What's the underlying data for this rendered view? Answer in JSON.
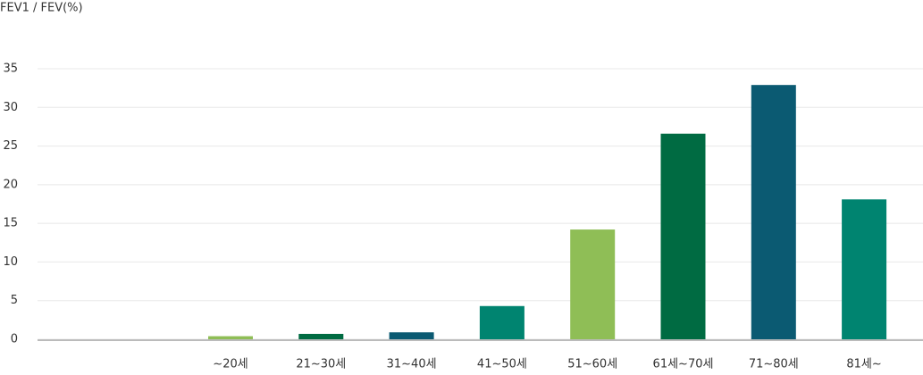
{
  "chart_data": {
    "type": "bar",
    "title": "FEV1 / FEV(%)",
    "categories": [
      "~20세",
      "21~30세",
      "31~40세",
      "41~50세",
      "51~60세",
      "61세~70세",
      "71~80세",
      "81세~"
    ],
    "values": [
      0.4,
      0.7,
      0.9,
      4.3,
      14.2,
      26.6,
      32.9,
      18.1
    ],
    "colors": [
      "#8fbe56",
      "#006b42",
      "#0b5a72",
      "#008470",
      "#8fbe56",
      "#006b42",
      "#0b5a72",
      "#008470"
    ],
    "ylim": [
      0,
      35
    ],
    "yticks": [
      0,
      5,
      10,
      15,
      20,
      25,
      30,
      35
    ],
    "grid": true
  }
}
